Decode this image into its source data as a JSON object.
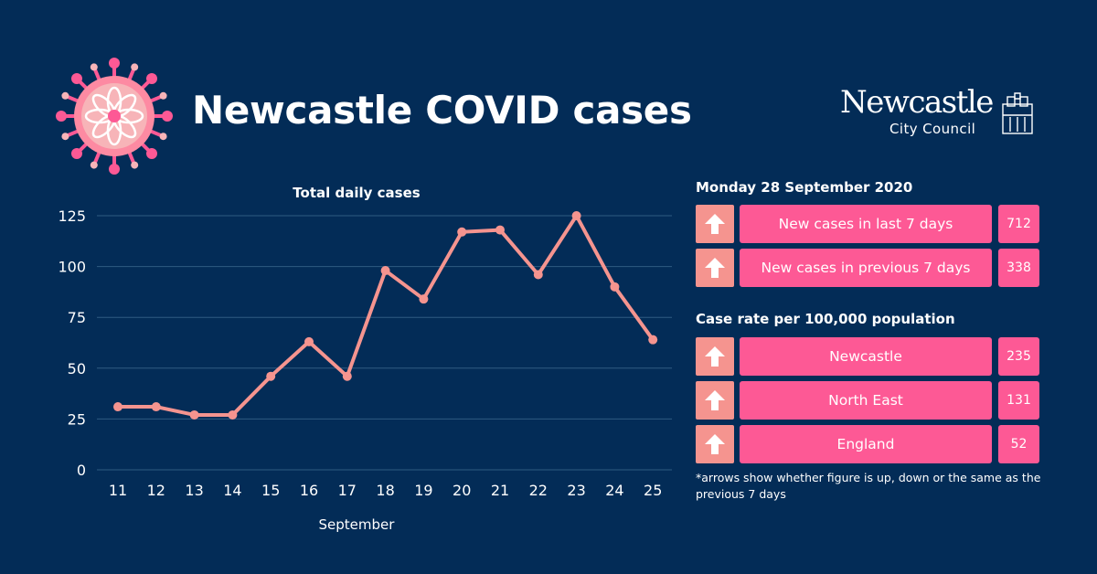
{
  "header": {
    "title": "Newcastle COVID cases",
    "logo_main": "Newcastle",
    "logo_sub": "City Council"
  },
  "chart_data": {
    "type": "line",
    "title": "Total daily cases",
    "xlabel": "September",
    "ylabel": "",
    "categories": [
      "11",
      "12",
      "13",
      "14",
      "15",
      "16",
      "17",
      "18",
      "19",
      "20",
      "21",
      "22",
      "23",
      "24",
      "25"
    ],
    "series": [
      {
        "values": [
          31,
          31,
          27,
          27,
          46,
          63,
          46,
          98,
          84,
          117,
          118,
          96,
          125,
          90,
          64
        ]
      }
    ],
    "ylim": [
      0,
      125
    ],
    "yticks": [
      0,
      25,
      50,
      75,
      100,
      125
    ],
    "grid": true,
    "line_color": "#f5948f"
  },
  "summary": {
    "date_heading": "Monday 28 September 2020",
    "weekly": [
      {
        "label": "New cases in last 7 days",
        "value": "712",
        "trend": "up"
      },
      {
        "label": "New cases in previous 7 days",
        "value": "338",
        "trend": "up"
      }
    ],
    "rate_heading": "Case rate per 100,000 population",
    "rates": [
      {
        "label": "Newcastle",
        "value": "235",
        "trend": "up"
      },
      {
        "label": "North East",
        "value": "131",
        "trend": "up"
      },
      {
        "label": "England",
        "value": "52",
        "trend": "up"
      }
    ],
    "footnote": "*arrows show whether figure is up, down or the same as the previous 7 days"
  },
  "colors": {
    "background": "#032c57",
    "accent_pink": "#fd5995",
    "accent_salmon": "#f5948f"
  }
}
